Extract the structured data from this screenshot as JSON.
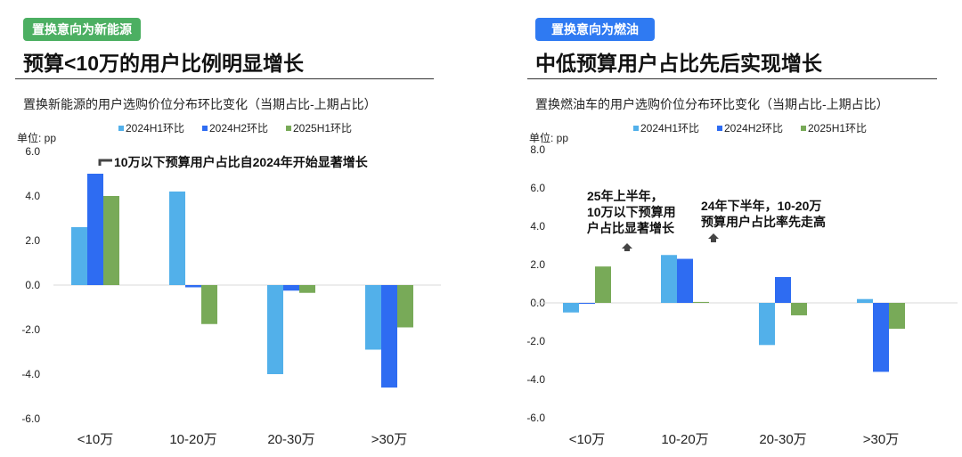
{
  "colors": {
    "h1": "#52b0ea",
    "h2": "#2e6cf2",
    "y25": "#78aa58",
    "tag_left": "#4caf62",
    "tag_right": "#2f7af2"
  },
  "chart_data": [
    {
      "type": "bar",
      "tag": "置换意向为新能源",
      "title": "预算<10万的用户比例明显增长",
      "subtitle": "置换新能源的用户选购价位分布环比变化（当期占比-上期占比）",
      "unit": "单位: pp",
      "categories": [
        "<10万",
        "10-20万",
        "20-30万",
        ">30万"
      ],
      "series": [
        {
          "name": "2024H1环比",
          "values": [
            2.6,
            4.2,
            -4.0,
            -2.9
          ]
        },
        {
          "name": "2024H2环比",
          "values": [
            5.0,
            -0.1,
            -0.25,
            -4.6
          ]
        },
        {
          "name": "2025H1环比",
          "values": [
            4.0,
            -1.75,
            -0.35,
            -1.9
          ]
        }
      ],
      "ylim": [
        -6,
        6
      ],
      "yticks": [
        "6.0",
        "4.0",
        "2.0",
        "0.0",
        "-2.0",
        "-4.0",
        "-6.0"
      ],
      "legend": "top",
      "annotations": [
        "10万以下预算用户占比自2024年开始显著增长"
      ]
    },
    {
      "type": "bar",
      "tag": "置换意向为燃油",
      "title": "中低预算用户占比先后实现增长",
      "subtitle": "置换燃油车的用户选购价位分布环比变化（当期占比-上期占比）",
      "unit": "单位: pp",
      "categories": [
        "<10万",
        "10-20万",
        "20-30万",
        ">30万"
      ],
      "series": [
        {
          "name": "2024H1环比",
          "values": [
            -0.5,
            2.5,
            -2.2,
            0.2
          ]
        },
        {
          "name": "2024H2环比",
          "values": [
            -0.05,
            2.3,
            1.35,
            -3.6
          ]
        },
        {
          "name": "2025H1环比",
          "values": [
            1.9,
            0.05,
            -0.65,
            -1.35
          ]
        }
      ],
      "ylim": [
        -6,
        8
      ],
      "yticks": [
        "8.0",
        "6.0",
        "4.0",
        "2.0",
        "0.0",
        "-2.0",
        "-4.0",
        "-6.0"
      ],
      "legend": "top",
      "annotations": [
        "25年上半年，",
        "10万以下预算用",
        "户占比显著增长",
        "24年下半年，10-20万",
        "预算用户占比率先走高"
      ]
    }
  ]
}
